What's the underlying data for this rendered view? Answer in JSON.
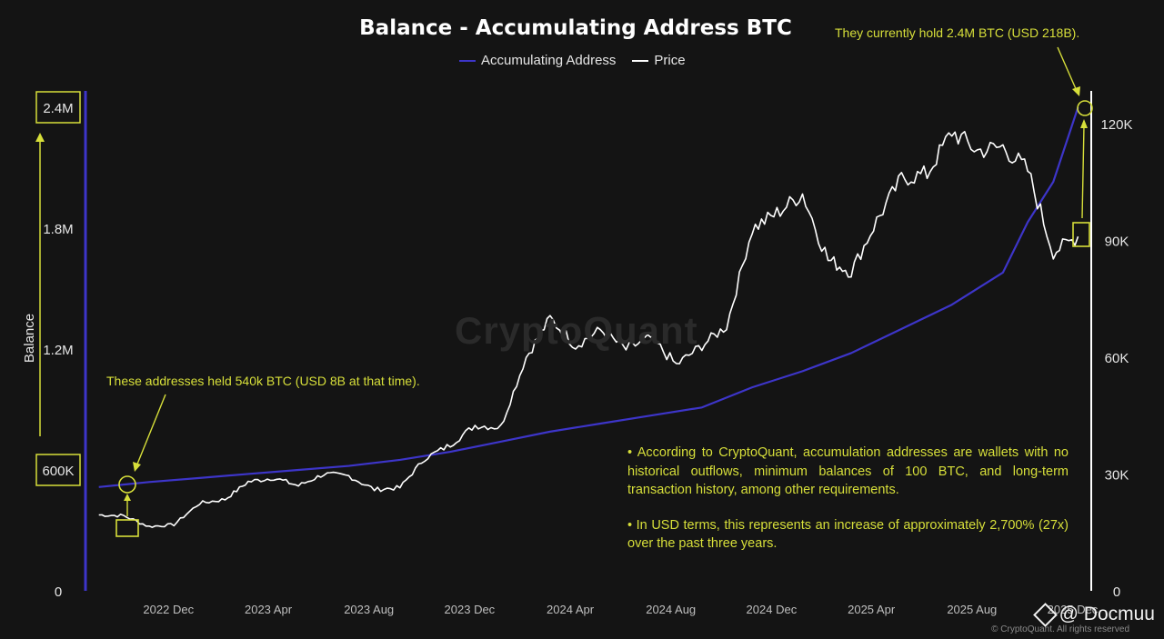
{
  "chart_data": {
    "type": "line",
    "title": "Balance - Accumulating Address BTC",
    "legend": [
      "Accumulating Address",
      "Price"
    ],
    "legend_position": "top-center",
    "ylabel": "Balance",
    "x_ticks": [
      "2022 Dec",
      "2023 Apr",
      "2023 Aug",
      "2023 Dec",
      "2024 Apr",
      "2024 Aug",
      "2024 Dec",
      "2025 Apr",
      "2025 Aug",
      "2025 Dec"
    ],
    "y_left_ticks": [
      "0",
      "600K",
      "1.2M",
      "1.8M",
      "2.4M"
    ],
    "y_left_range": [
      0,
      2400000
    ],
    "y_right_ticks": [
      "0",
      "30K",
      "60K",
      "90K",
      "120K"
    ],
    "y_right_range": [
      0,
      120000
    ],
    "grid": false,
    "colors": {
      "balance": "#3d35c9",
      "price": "#ffffff",
      "annotation": "#d7df3a",
      "background": "#141414"
    },
    "series": [
      {
        "name": "Accumulating Address",
        "axis": "left",
        "x": [
          "2022-09",
          "2022-11",
          "2023-01",
          "2023-03",
          "2023-05",
          "2023-07",
          "2023-09",
          "2023-11",
          "2024-01",
          "2024-03",
          "2024-05",
          "2024-07",
          "2024-09",
          "2024-11",
          "2025-01",
          "2025-03",
          "2025-05",
          "2025-07",
          "2025-09",
          "2025-10",
          "2025-11",
          "2025-12"
        ],
        "values": [
          515000,
          540000,
          560000,
          580000,
          600000,
          620000,
          650000,
          690000,
          740000,
          790000,
          830000,
          870000,
          910000,
          1010000,
          1090000,
          1180000,
          1300000,
          1420000,
          1580000,
          1830000,
          2030000,
          2400000
        ]
      },
      {
        "name": "Price",
        "axis": "right",
        "x": [
          "2022-09",
          "2022-10",
          "2022-11",
          "2022-12",
          "2023-01",
          "2023-02",
          "2023-03",
          "2023-04",
          "2023-05",
          "2023-06",
          "2023-07",
          "2023-08",
          "2023-09",
          "2023-10",
          "2023-11",
          "2023-12",
          "2024-01",
          "2024-02",
          "2024-03",
          "2024-04",
          "2024-05",
          "2024-06",
          "2024-07",
          "2024-08",
          "2024-09",
          "2024-10",
          "2024-11",
          "2024-12",
          "2025-01",
          "2025-02",
          "2025-03",
          "2025-04",
          "2025-05",
          "2025-06",
          "2025-07",
          "2025-08",
          "2025-09",
          "2025-10",
          "2025-11",
          "2025-12"
        ],
        "values": [
          19500,
          19300,
          16500,
          17000,
          22500,
          23500,
          28000,
          29000,
          27000,
          30000,
          29500,
          26000,
          26500,
          34000,
          37500,
          42500,
          42000,
          60000,
          70000,
          63000,
          67000,
          62000,
          65000,
          58000,
          63000,
          68000,
          93000,
          97000,
          102000,
          85000,
          82000,
          95000,
          106000,
          107000,
          118000,
          113000,
          114000,
          108000,
          87000,
          91000
        ]
      }
    ],
    "annotations": {
      "early": "These addresses held 540k BTC (USD 8B at that time).",
      "now": "They currently hold 2.4M BTC (USD 218B).",
      "note1": "• According to CryptoQuant, accumulation addresses are wallets with no historical outflows, minimum balances of 100 BTC, and long-term transaction history, among other requirements.",
      "note2": "• In USD terms, this represents an increase of approximately 2,700% (27x) over the past three years."
    },
    "watermark": "CryptoQuant",
    "footer": "© CryptoQuant. All rights reserved",
    "brand": "@ Docmuu"
  }
}
